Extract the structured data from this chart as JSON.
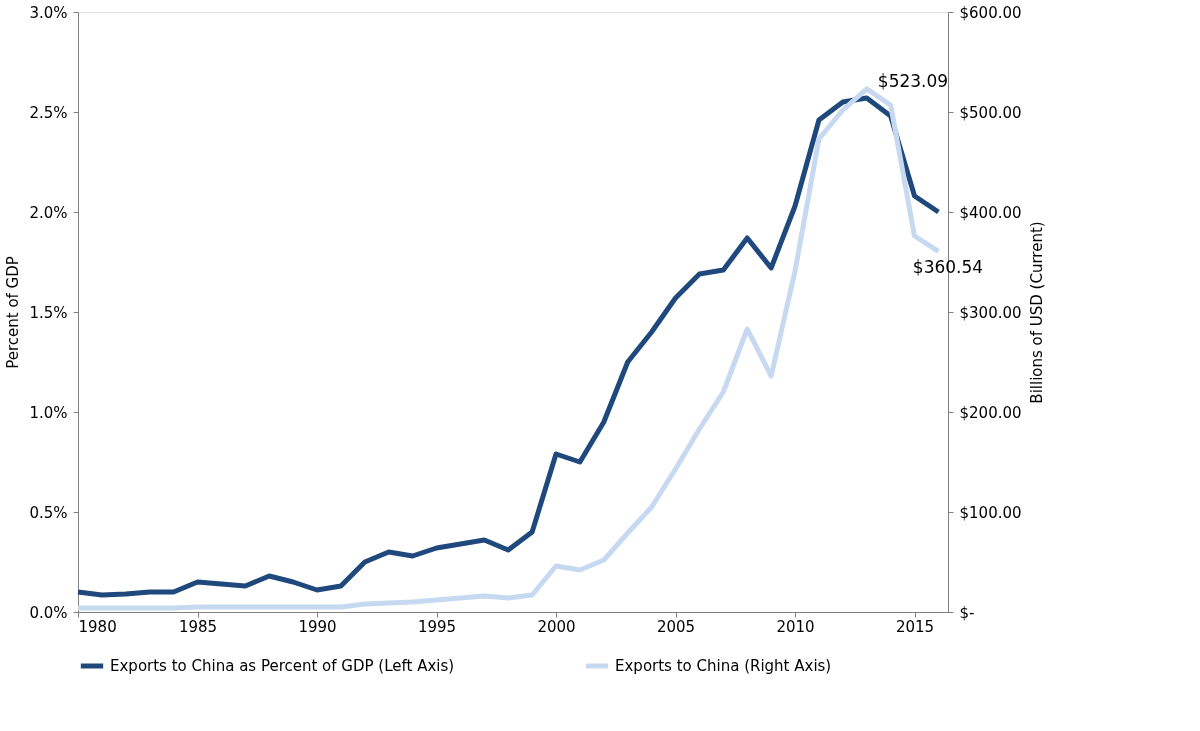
{
  "chart_data": {
    "type": "line",
    "x": [
      1980,
      1981,
      1982,
      1983,
      1984,
      1985,
      1986,
      1987,
      1988,
      1989,
      1990,
      1991,
      1992,
      1993,
      1994,
      1995,
      1996,
      1997,
      1998,
      1999,
      2000,
      2001,
      2002,
      2003,
      2004,
      2005,
      2006,
      2007,
      2008,
      2009,
      2010,
      2011,
      2012,
      2013,
      2014,
      2015,
      2016
    ],
    "series": [
      {
        "name": "Exports to China as Percent of GDP (Left Axis)",
        "color": "#1f497d",
        "values": [
          0.1,
          0.085,
          0.09,
          0.1,
          0.1,
          0.15,
          0.14,
          0.13,
          0.18,
          0.15,
          0.11,
          0.13,
          0.25,
          0.3,
          0.28,
          0.32,
          0.34,
          0.36,
          0.31,
          0.4,
          0.79,
          0.75,
          0.95,
          1.25,
          1.4,
          1.57,
          1.69,
          1.71,
          1.87,
          1.72,
          2.03,
          2.46,
          2.55,
          2.57,
          2.48,
          2.08,
          2.0
        ]
      },
      {
        "name": "Exports to China (Right Axis)",
        "color": "#c6d9f1",
        "axis": "y2",
        "values": [
          4,
          4,
          4,
          4,
          4,
          5,
          5,
          5,
          5,
          5,
          5,
          5,
          8,
          9,
          10,
          12,
          14,
          16,
          14,
          17,
          46,
          42,
          52,
          79,
          105,
          143,
          183,
          220,
          283,
          236,
          341,
          473,
          502,
          523.09,
          507,
          376,
          360.54
        ]
      }
    ],
    "xlim": [
      1980,
      2016.4
    ],
    "xticks": [
      1980,
      1985,
      1990,
      1995,
      2000,
      2005,
      2010,
      2015
    ],
    "ylim": [
      0,
      3
    ],
    "yticks": [
      {
        "value": 0,
        "label": "0.0%"
      },
      {
        "value": 0.5,
        "label": "0.5%"
      },
      {
        "value": 1,
        "label": "1.0%"
      },
      {
        "value": 1.5,
        "label": "1.5%"
      },
      {
        "value": 2,
        "label": "2.0%"
      },
      {
        "value": 2.5,
        "label": "2.5%"
      },
      {
        "value": 3,
        "label": "3.0%"
      }
    ],
    "y2lim": [
      0,
      600
    ],
    "y2ticks": [
      {
        "value": 0,
        "label": "$-"
      },
      {
        "value": 100,
        "label": "$100.00"
      },
      {
        "value": 200,
        "label": "$200.00"
      },
      {
        "value": 300,
        "label": "$300.00"
      },
      {
        "value": 400,
        "label": "$400.00"
      },
      {
        "value": 500,
        "label": "$500.00"
      },
      {
        "value": 600,
        "label": "$600.00"
      }
    ],
    "ylabel": "Percent of GDP",
    "y2label": "Billions of USD (Current)",
    "annotations": [
      "$523.09",
      "$360.54"
    ],
    "legend": "bottom",
    "grid": false,
    "marker": "none",
    "line_style": "solid"
  }
}
